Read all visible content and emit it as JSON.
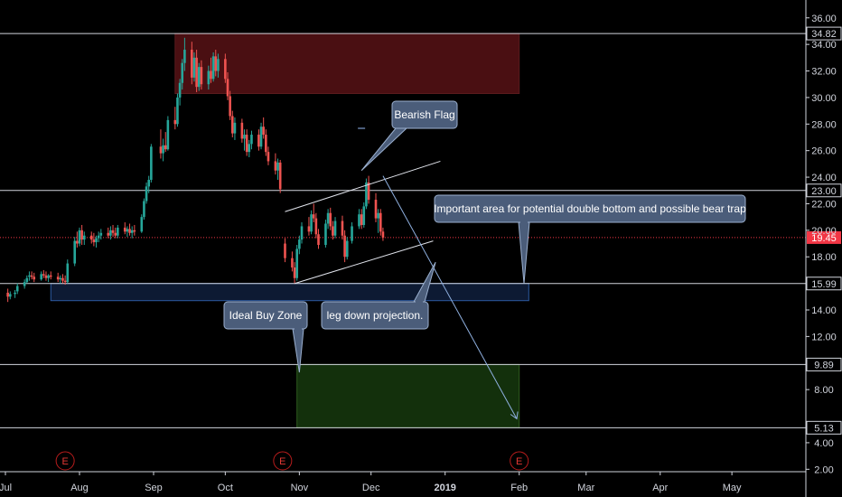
{
  "chart_data": {
    "type": "candlestick",
    "y_axis": {
      "ticks": [
        "36.00",
        "34.00",
        "32.00",
        "30.00",
        "28.00",
        "26.00",
        "24.00",
        "22.00",
        "20.00",
        "18.00",
        "14.00",
        "12.00",
        "8.00",
        "4.00",
        "2.00"
      ],
      "tick_values": [
        36,
        34,
        32,
        30,
        28,
        26,
        24,
        22,
        20,
        18,
        14,
        12,
        8,
        4,
        2
      ],
      "range": [
        1.0,
        36.8
      ]
    },
    "x_axis": {
      "ticks": [
        "Jul",
        "Aug",
        "Sep",
        "Oct",
        "Nov",
        "Dec",
        "2019",
        "Feb",
        "Mar",
        "Apr",
        "May"
      ],
      "tick_dates": [
        "2018-07-01",
        "2018-08-01",
        "2018-09-01",
        "2018-10-01",
        "2018-11-01",
        "2018-12-01",
        "2019-01-01",
        "2019-02-01",
        "2019-03-01",
        "2019-04-01",
        "2019-05-01"
      ]
    },
    "horizontal_levels": [
      {
        "label": "34.82",
        "value": 34.82,
        "color": "#d1d4dc"
      },
      {
        "label": "23.00",
        "value": 23.0,
        "color": "#d1d4dc"
      },
      {
        "label": "15.99",
        "value": 15.99,
        "color": "#d1d4dc"
      },
      {
        "label": "9.89",
        "value": 9.89,
        "color": "#d1d4dc"
      },
      {
        "label": "5.13",
        "value": 5.13,
        "color": "#d1d4dc"
      }
    ],
    "last_price": {
      "label": "19.45",
      "value": 19.45,
      "color": "#f23645"
    },
    "zones": [
      {
        "kind": "resistance",
        "from": "2018-09-10",
        "to": "2019-02-01",
        "y_low": 30.3,
        "y_high": 34.82,
        "color": "#4a0f12"
      },
      {
        "kind": "support",
        "from": "2018-07-20",
        "to": "2019-02-05",
        "y_low": 14.7,
        "y_high": 16.0,
        "color": "#0d1a33"
      },
      {
        "kind": "buy",
        "from": "2018-10-31",
        "to": "2019-02-01",
        "y_low": 5.13,
        "y_high": 9.89,
        "color": "#13300c"
      }
    ],
    "trendlines": [
      {
        "name": "flag-upper",
        "from": [
          "2018-10-26",
          21.4
        ],
        "to": [
          "2018-12-30",
          25.2
        ]
      },
      {
        "name": "flag-lower",
        "from": [
          "2018-10-30",
          15.99
        ],
        "to": [
          "2018-12-27",
          19.2
        ]
      },
      {
        "name": "leg-down-projection",
        "from": [
          "2018-12-06",
          24.1
        ],
        "to": [
          "2019-01-31",
          5.8
        ]
      }
    ],
    "events": [
      {
        "label": "E",
        "date": "2018-07-26"
      },
      {
        "label": "E",
        "date": "2018-10-25"
      },
      {
        "label": "E",
        "date": "2019-02-01"
      }
    ],
    "callouts": [
      {
        "text": "Bearish Flag",
        "anchor_date": "2018-11-27",
        "anchor_value": 24.5
      },
      {
        "text": "Important area for potential double bottom and possible bear trap",
        "anchor_date": "2019-02-03",
        "anchor_value": 16.0
      },
      {
        "text": "leg down projection.",
        "anchor_date": "2018-12-28",
        "anchor_value": 17.6
      },
      {
        "text": "Ideal Buy Zone",
        "anchor_date": "2018-11-01",
        "anchor_value": 9.3
      }
    ],
    "candles": [
      [
        "2018-07-02",
        15.3,
        15.6,
        14.6,
        15.0
      ],
      [
        "2018-07-03",
        15.0,
        15.4,
        14.8,
        15.2
      ],
      [
        "2018-07-05",
        15.2,
        15.5,
        14.9,
        15.3
      ],
      [
        "2018-07-06",
        15.4,
        16.0,
        15.2,
        15.8
      ],
      [
        "2018-07-09",
        15.8,
        16.3,
        15.6,
        16.1
      ],
      [
        "2018-07-10",
        16.1,
        16.6,
        16.0,
        16.4
      ],
      [
        "2018-07-11",
        16.5,
        16.9,
        16.2,
        16.6
      ],
      [
        "2018-07-12",
        16.6,
        16.9,
        16.3,
        16.5
      ],
      [
        "2018-07-13",
        16.5,
        16.8,
        16.1,
        16.3
      ],
      [
        "2018-07-16",
        16.3,
        16.9,
        16.2,
        16.7
      ],
      [
        "2018-07-17",
        16.7,
        17.0,
        16.4,
        16.6
      ],
      [
        "2018-07-18",
        16.6,
        16.9,
        16.2,
        16.4
      ],
      [
        "2018-07-19",
        16.4,
        16.7,
        16.1,
        16.6
      ],
      [
        "2018-07-20",
        16.6,
        16.9,
        16.3,
        16.5
      ],
      [
        "2018-07-23",
        16.5,
        16.8,
        16.1,
        16.3
      ],
      [
        "2018-07-24",
        16.3,
        16.6,
        16.0,
        16.4
      ],
      [
        "2018-07-25",
        16.4,
        16.7,
        16.0,
        16.2
      ],
      [
        "2018-07-26",
        16.2,
        16.6,
        15.9,
        16.1
      ],
      [
        "2018-07-27",
        16.1,
        17.8,
        16.0,
        17.5
      ],
      [
        "2018-07-30",
        17.5,
        19.5,
        17.3,
        19.2
      ],
      [
        "2018-07-31",
        19.2,
        19.9,
        18.7,
        19.0
      ],
      [
        "2018-08-01",
        19.0,
        20.2,
        18.8,
        20.0
      ],
      [
        "2018-08-02",
        20.0,
        20.4,
        18.9,
        19.3
      ],
      [
        "2018-08-03",
        19.3,
        19.9,
        18.9,
        19.6
      ],
      [
        "2018-08-06",
        19.6,
        19.9,
        19.0,
        19.3
      ],
      [
        "2018-08-07",
        19.3,
        19.8,
        18.8,
        19.1
      ],
      [
        "2018-08-08",
        19.1,
        19.6,
        18.7,
        19.4
      ],
      [
        "2018-08-09",
        19.4,
        19.9,
        19.1,
        19.6
      ],
      [
        "2018-08-10",
        19.6,
        20.1,
        19.3,
        19.8
      ],
      [
        "2018-08-13",
        19.8,
        20.2,
        19.4,
        19.6
      ],
      [
        "2018-08-14",
        19.6,
        20.3,
        19.3,
        20.0
      ],
      [
        "2018-08-15",
        20.0,
        20.4,
        19.5,
        19.8
      ],
      [
        "2018-08-16",
        19.8,
        20.2,
        19.4,
        19.6
      ],
      [
        "2018-08-17",
        19.6,
        20.4,
        19.4,
        20.2
      ],
      [
        "2018-08-20",
        20.2,
        20.6,
        19.7,
        19.9
      ],
      [
        "2018-08-21",
        19.9,
        20.3,
        19.5,
        20.1
      ],
      [
        "2018-08-22",
        20.1,
        20.5,
        19.6,
        19.8
      ],
      [
        "2018-08-23",
        19.8,
        20.3,
        19.4,
        20.0
      ],
      [
        "2018-08-24",
        20.0,
        20.4,
        19.6,
        19.9
      ],
      [
        "2018-08-27",
        19.9,
        21.2,
        19.8,
        21.0
      ],
      [
        "2018-08-28",
        21.0,
        22.4,
        20.8,
        22.2
      ],
      [
        "2018-08-29",
        22.2,
        23.6,
        22.0,
        23.3
      ],
      [
        "2018-08-30",
        23.3,
        24.1,
        22.8,
        23.8
      ],
      [
        "2018-08-31",
        23.8,
        26.5,
        23.6,
        26.3
      ],
      [
        "2018-09-04",
        26.3,
        27.6,
        25.4,
        25.8
      ],
      [
        "2018-09-05",
        25.8,
        26.9,
        25.2,
        26.4
      ],
      [
        "2018-09-06",
        26.4,
        27.4,
        25.9,
        26.1
      ],
      [
        "2018-09-07",
        26.1,
        28.6,
        26.0,
        28.3
      ],
      [
        "2018-09-10",
        28.3,
        29.3,
        27.6,
        28.0
      ],
      [
        "2018-09-11",
        28.0,
        30.3,
        27.8,
        30.0
      ],
      [
        "2018-09-12",
        30.0,
        31.4,
        29.4,
        31.1
      ],
      [
        "2018-09-13",
        31.1,
        32.9,
        30.6,
        32.6
      ],
      [
        "2018-09-14",
        32.6,
        34.5,
        32.0,
        33.6
      ],
      [
        "2018-09-17",
        33.6,
        34.2,
        31.0,
        31.5
      ],
      [
        "2018-09-18",
        31.5,
        33.4,
        31.2,
        33.0
      ],
      [
        "2018-09-19",
        33.0,
        33.6,
        30.4,
        30.8
      ],
      [
        "2018-09-20",
        30.8,
        32.6,
        30.5,
        32.3
      ],
      [
        "2018-09-21",
        32.3,
        32.8,
        30.6,
        31.0
      ],
      [
        "2018-09-24",
        31.0,
        32.4,
        30.6,
        32.0
      ],
      [
        "2018-09-25",
        32.0,
        33.0,
        31.1,
        31.4
      ],
      [
        "2018-09-26",
        31.4,
        33.4,
        31.2,
        33.1
      ],
      [
        "2018-09-27",
        33.1,
        33.6,
        31.6,
        32.0
      ],
      [
        "2018-09-28",
        32.0,
        33.3,
        31.5,
        32.9
      ],
      [
        "2018-10-01",
        32.9,
        33.3,
        31.1,
        31.4
      ],
      [
        "2018-10-02",
        31.4,
        31.9,
        29.8,
        30.1
      ],
      [
        "2018-10-03",
        30.1,
        30.5,
        28.3,
        28.6
      ],
      [
        "2018-10-04",
        28.6,
        29.0,
        27.0,
        27.3
      ],
      [
        "2018-10-05",
        27.3,
        28.5,
        26.8,
        28.1
      ],
      [
        "2018-10-08",
        28.1,
        28.4,
        26.6,
        26.9
      ],
      [
        "2018-10-09",
        26.9,
        27.6,
        26.0,
        27.2
      ],
      [
        "2018-10-10",
        27.2,
        27.6,
        25.6,
        25.9
      ],
      [
        "2018-10-11",
        25.9,
        26.8,
        25.5,
        26.5
      ],
      [
        "2018-10-12",
        26.5,
        27.5,
        26.1,
        27.2
      ],
      [
        "2018-10-15",
        27.2,
        27.6,
        26.0,
        26.3
      ],
      [
        "2018-10-16",
        26.3,
        28.1,
        26.1,
        27.8
      ],
      [
        "2018-10-17",
        27.8,
        28.5,
        26.9,
        27.2
      ],
      [
        "2018-10-18",
        27.2,
        27.6,
        25.6,
        25.9
      ],
      [
        "2018-10-19",
        25.9,
        26.3,
        24.9,
        25.2
      ],
      [
        "2018-10-22",
        25.2,
        25.8,
        24.2,
        24.5
      ],
      [
        "2018-10-23",
        24.5,
        25.4,
        23.8,
        25.1
      ],
      [
        "2018-10-24",
        25.1,
        25.3,
        22.8,
        23.1
      ],
      [
        "2018-10-26",
        19.0,
        19.4,
        17.6,
        17.9
      ],
      [
        "2018-10-29",
        17.9,
        18.4,
        16.9,
        17.2
      ],
      [
        "2018-10-30",
        17.2,
        17.6,
        16.0,
        16.4
      ],
      [
        "2018-10-31",
        16.4,
        18.9,
        16.2,
        18.6
      ],
      [
        "2018-11-01",
        18.6,
        19.6,
        18.2,
        19.3
      ],
      [
        "2018-11-02",
        19.3,
        20.6,
        19.0,
        20.3
      ],
      [
        "2018-11-05",
        20.3,
        21.0,
        19.6,
        19.9
      ],
      [
        "2018-11-06",
        19.9,
        21.5,
        19.7,
        21.2
      ],
      [
        "2018-11-07",
        21.2,
        22.0,
        20.6,
        20.9
      ],
      [
        "2018-11-08",
        20.9,
        21.3,
        19.4,
        19.7
      ],
      [
        "2018-11-09",
        19.7,
        20.1,
        18.6,
        18.9
      ],
      [
        "2018-11-12",
        18.9,
        20.8,
        18.7,
        20.5
      ],
      [
        "2018-11-13",
        20.5,
        21.6,
        20.1,
        21.3
      ],
      [
        "2018-11-14",
        21.3,
        21.7,
        20.0,
        20.3
      ],
      [
        "2018-11-15",
        20.3,
        20.7,
        19.3,
        19.6
      ],
      [
        "2018-11-16",
        19.6,
        21.0,
        19.4,
        20.7
      ],
      [
        "2018-11-19",
        20.7,
        21.1,
        19.3,
        19.6
      ],
      [
        "2018-11-20",
        19.6,
        20.0,
        17.6,
        18.0
      ],
      [
        "2018-11-21",
        18.0,
        19.5,
        17.8,
        19.2
      ],
      [
        "2018-11-23",
        19.2,
        20.6,
        19.0,
        20.3
      ],
      [
        "2018-11-26",
        20.3,
        21.6,
        20.1,
        21.2
      ],
      [
        "2018-11-27",
        21.2,
        21.6,
        20.1,
        20.4
      ],
      [
        "2018-11-28",
        20.4,
        22.1,
        20.2,
        21.8
      ],
      [
        "2018-11-29",
        21.8,
        23.9,
        21.6,
        23.6
      ],
      [
        "2018-11-30",
        23.6,
        24.1,
        22.0,
        22.3
      ],
      [
        "2018-12-03",
        22.3,
        22.8,
        20.6,
        20.9
      ],
      [
        "2018-12-04",
        20.9,
        21.6,
        19.8,
        21.3
      ],
      [
        "2018-12-05",
        21.3,
        21.6,
        19.6,
        19.9
      ],
      [
        "2018-12-06",
        19.9,
        20.2,
        19.2,
        19.45
      ]
    ]
  }
}
